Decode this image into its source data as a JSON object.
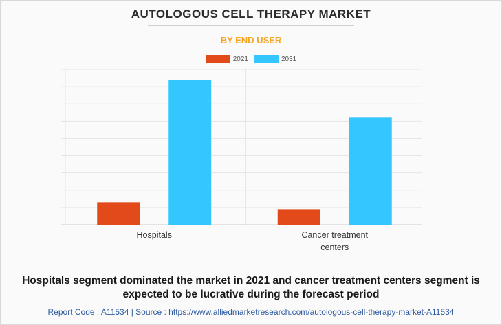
{
  "header": {
    "title": "AUTOLOGOUS CELL THERAPY MARKET",
    "subtitle": "BY END USER"
  },
  "caption": {
    "line1": "Hospitals segment dominated the market in 2021 and cancer treatment centers segment is",
    "line2": "expected to be lucrative during the forecast period"
  },
  "footer": {
    "text": "Report Code : A11534  |  Source : https://www.alliedmarketresearch.com/autologous-cell-therapy-market-A11534"
  },
  "chart_data": {
    "type": "bar",
    "categories": [
      [
        "Hospitals"
      ],
      [
        "Cancer treatment",
        "centers"
      ]
    ],
    "series": [
      {
        "name": "2021",
        "color": "#e24a1a",
        "values": [
          1.3,
          0.9
        ]
      },
      {
        "name": "2031",
        "color": "#33c6ff",
        "values": [
          8.4,
          6.2
        ]
      }
    ],
    "ylim": [
      0,
      9
    ],
    "grid": true,
    "legend": "top-center",
    "ylabel": "",
    "xlabel": ""
  }
}
